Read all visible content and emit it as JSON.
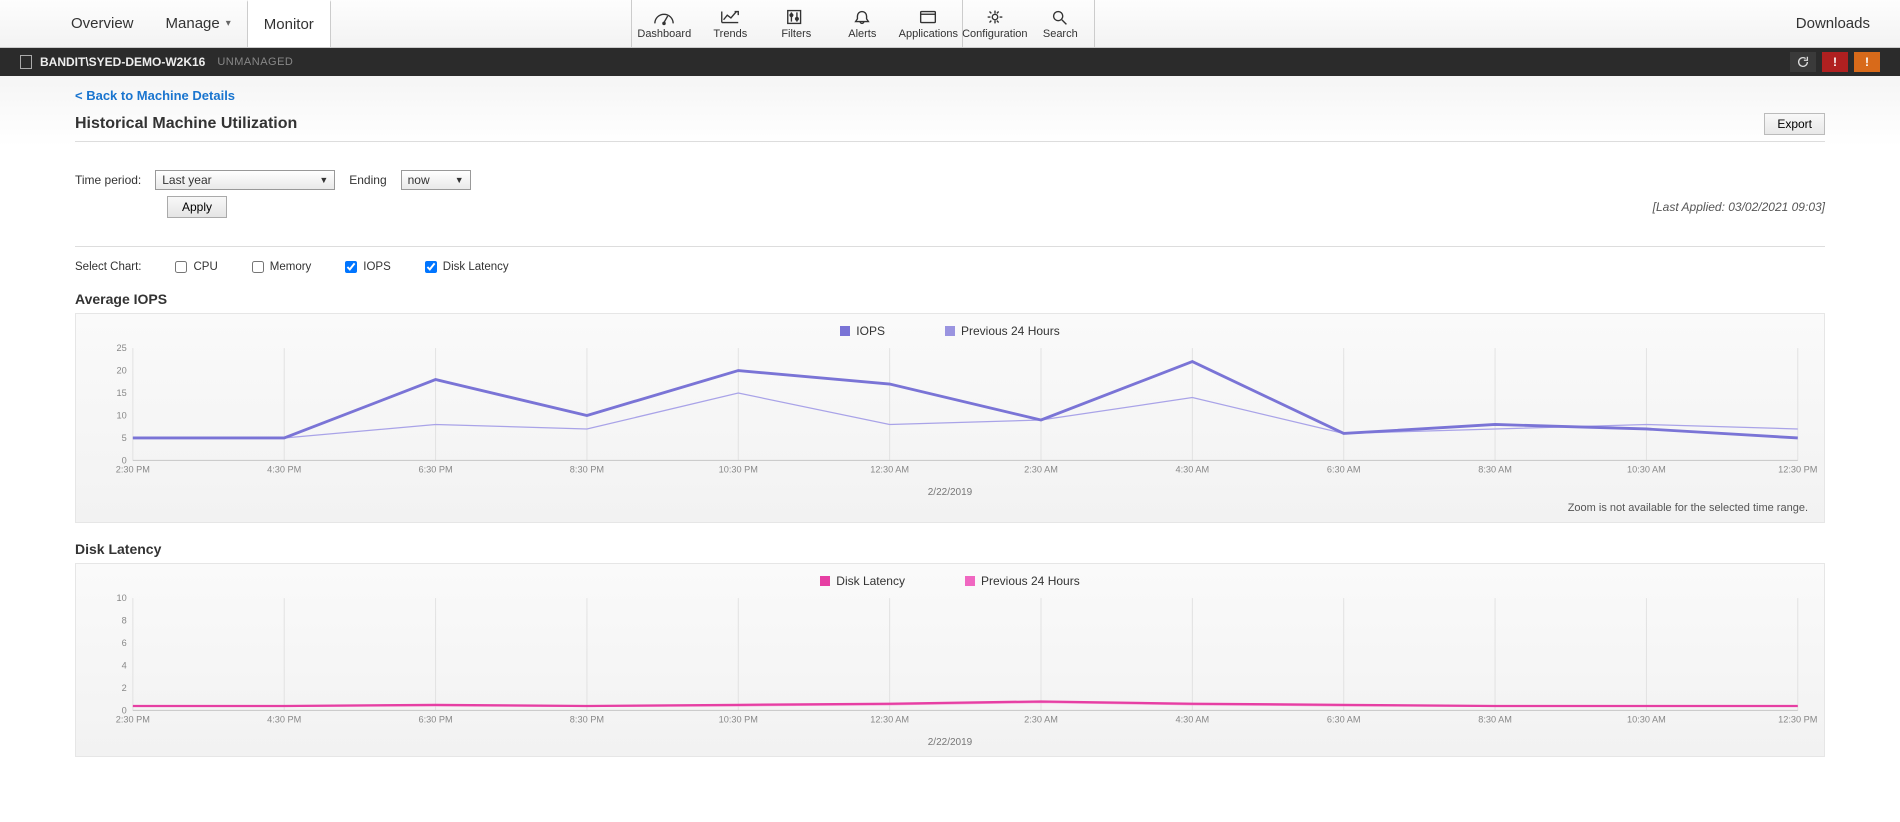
{
  "topnav": {
    "tabs": {
      "overview": "Overview",
      "manage": "Manage",
      "monitor": "Monitor"
    },
    "icons": {
      "dashboard": "Dashboard",
      "trends": "Trends",
      "filters": "Filters",
      "alerts": "Alerts",
      "applications": "Applications",
      "configuration": "Configuration",
      "search": "Search"
    },
    "downloads": "Downloads"
  },
  "context": {
    "machine": "BANDIT\\SYED-DEMO-W2K16",
    "status": "UNMANAGED"
  },
  "page": {
    "back_link": "< Back to Machine Details",
    "title": "Historical Machine Utilization",
    "export": "Export"
  },
  "controls": {
    "time_period_label": "Time period:",
    "time_period_value": "Last year",
    "ending_label": "Ending",
    "ending_value": "now",
    "apply": "Apply",
    "last_applied": "[Last Applied: 03/02/2021 09:03]"
  },
  "select_chart": {
    "label": "Select Chart:",
    "options": [
      {
        "label": "CPU",
        "checked": false
      },
      {
        "label": "Memory",
        "checked": false
      },
      {
        "label": "IOPS",
        "checked": true
      },
      {
        "label": "Disk Latency",
        "checked": true
      }
    ]
  },
  "chart_iops": {
    "title": "Average IOPS",
    "legend": [
      {
        "label": "IOPS",
        "color": "#7a74d6"
      },
      {
        "label": "Previous 24 Hours",
        "color": "#9a94e0"
      }
    ],
    "y": {
      "min": 0,
      "max": 25,
      "ticks": [
        0,
        5,
        10,
        15,
        20,
        25
      ]
    },
    "x": {
      "ticks": [
        "2:30 PM",
        "4:30 PM",
        "6:30 PM",
        "8:30 PM",
        "10:30 PM",
        "12:30 AM",
        "2:30 AM",
        "4:30 AM",
        "6:30 AM",
        "8:30 AM",
        "10:30 AM",
        "12:30 PM"
      ],
      "date": "2/22/2019"
    },
    "series_main": [
      5,
      5,
      18,
      10,
      20,
      17,
      9,
      22,
      6,
      8,
      7,
      5
    ],
    "series_prev": [
      5,
      5,
      8,
      7,
      15,
      8,
      9,
      14,
      6,
      7,
      8,
      7
    ],
    "colors": {
      "main": "#7a74d6",
      "prev": "#a9a3e8"
    },
    "line_width_main": 2.8,
    "line_width_prev": 1.2,
    "background": "#f5f5f5",
    "grid_color": "#e2e2e2",
    "zoom_note": "Zoom is not available for the selected time range."
  },
  "chart_latency": {
    "title": "Disk Latency",
    "legend": [
      {
        "label": "Disk Latency",
        "color": "#e63fa3"
      },
      {
        "label": "Previous 24 Hours",
        "color": "#f067c1"
      }
    ],
    "y": {
      "min": 0,
      "max": 10,
      "ticks": [
        0,
        2,
        4,
        6,
        8,
        10
      ]
    },
    "x": {
      "ticks": [
        "2:30 PM",
        "4:30 PM",
        "6:30 PM",
        "8:30 PM",
        "10:30 PM",
        "12:30 AM",
        "2:30 AM",
        "4:30 AM",
        "6:30 AM",
        "8:30 AM",
        "10:30 AM",
        "12:30 PM"
      ],
      "date": "2/22/2019"
    },
    "series_main": [
      0.4,
      0.4,
      0.5,
      0.4,
      0.5,
      0.6,
      0.8,
      0.6,
      0.5,
      0.4,
      0.4,
      0.4
    ],
    "series_prev": [
      0.35,
      0.35,
      0.4,
      0.35,
      0.4,
      0.5,
      0.7,
      0.5,
      0.4,
      0.35,
      0.35,
      0.35
    ],
    "colors": {
      "main": "#e63fa3",
      "prev": "#f59ad4"
    },
    "line_width_main": 2.2,
    "line_width_prev": 1.0,
    "background": "#f5f5f5",
    "grid_color": "#e2e2e2"
  }
}
